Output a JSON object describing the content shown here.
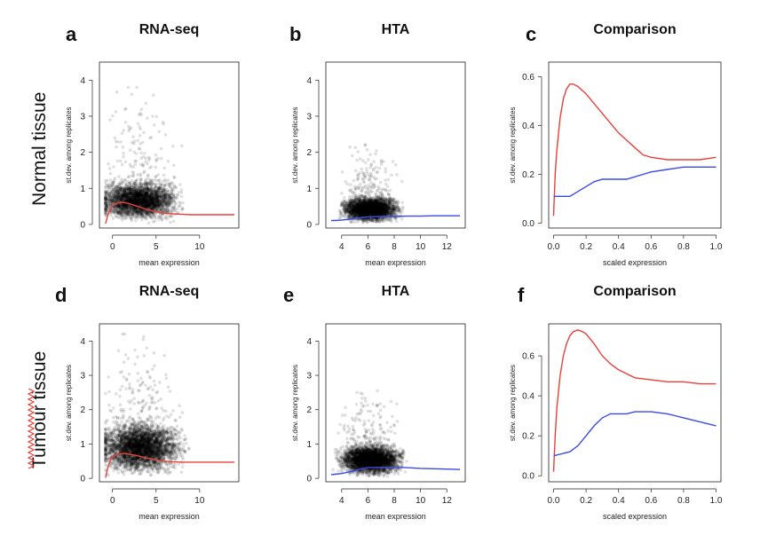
{
  "figure": {
    "row_labels": [
      "Normal tissue",
      "Tumour tissue"
    ],
    "spellcheck_color": "#e8413a"
  },
  "chart_data": [
    {
      "panel": "a",
      "title": "RNA-seq",
      "type": "scatter",
      "xlabel": "mean expression",
      "ylabel": "st.dev. among replicates",
      "xlim": [
        -1.5,
        14.5
      ],
      "ylim": [
        -0.1,
        4.5
      ],
      "xticks": [
        0,
        5,
        10
      ],
      "yticks": [
        0,
        1,
        2,
        3,
        4
      ],
      "point_color": "#000000",
      "point_opacity": 0.12,
      "density": {
        "x_center": 3.0,
        "x_spread": 2.6,
        "x_min": -0.8,
        "x_max": 11.5,
        "y_scale": 0.55,
        "n": 3200,
        "max_y": 3.8
      },
      "series": [
        {
          "color": "#e8413a",
          "x": [
            -0.8,
            -0.6,
            -0.4,
            -0.2,
            0,
            0.3,
            0.6,
            1,
            1.5,
            2,
            3,
            4,
            5,
            6,
            7,
            8,
            9,
            10,
            11,
            12,
            13,
            14
          ],
          "y": [
            0.02,
            0.2,
            0.36,
            0.46,
            0.52,
            0.57,
            0.6,
            0.61,
            0.6,
            0.57,
            0.49,
            0.41,
            0.35,
            0.31,
            0.29,
            0.28,
            0.27,
            0.27,
            0.27,
            0.27,
            0.27,
            0.27
          ]
        }
      ]
    },
    {
      "panel": "b",
      "title": "HTA",
      "type": "scatter",
      "xlabel": "mean expression",
      "ylabel": "st.dev. among replicates",
      "xlim": [
        2.8,
        13.4
      ],
      "ylim": [
        -0.1,
        4.5
      ],
      "xticks": [
        4,
        6,
        8,
        10,
        12
      ],
      "yticks": [
        0,
        1,
        2,
        3,
        4
      ],
      "point_color": "#000000",
      "point_opacity": 0.12,
      "density": {
        "x_center": 6.2,
        "x_spread": 1.3,
        "x_min": 3.2,
        "x_max": 10.2,
        "y_scale": 0.35,
        "n": 3200,
        "max_y": 2.4
      },
      "series": [
        {
          "color": "#3a4ae8",
          "x": [
            3.2,
            3.5,
            4,
            4.5,
            5,
            6,
            7,
            8,
            9,
            10,
            11,
            12,
            13
          ],
          "y": [
            0.11,
            0.11,
            0.12,
            0.14,
            0.17,
            0.21,
            0.22,
            0.22,
            0.23,
            0.23,
            0.24,
            0.24,
            0.24
          ]
        }
      ]
    },
    {
      "panel": "c",
      "title": "Comparison",
      "type": "line",
      "xlabel": "scaled expression",
      "ylabel": "st.dev. among replicates",
      "xlim": [
        -0.03,
        1.03
      ],
      "ylim": [
        -0.02,
        0.66
      ],
      "xticks": [
        0.0,
        0.2,
        0.4,
        0.6,
        0.8,
        1.0
      ],
      "yticks": [
        0.0,
        0.2,
        0.4,
        0.6
      ],
      "series": [
        {
          "color": "#e8413a",
          "x": [
            0.0,
            0.01,
            0.02,
            0.04,
            0.06,
            0.08,
            0.1,
            0.12,
            0.15,
            0.2,
            0.25,
            0.3,
            0.35,
            0.4,
            0.45,
            0.5,
            0.55,
            0.6,
            0.7,
            0.8,
            0.9,
            1.0
          ],
          "y": [
            0.03,
            0.2,
            0.3,
            0.43,
            0.51,
            0.55,
            0.57,
            0.57,
            0.56,
            0.53,
            0.49,
            0.45,
            0.41,
            0.37,
            0.34,
            0.31,
            0.28,
            0.27,
            0.26,
            0.26,
            0.26,
            0.27
          ]
        },
        {
          "color": "#3a4ae8",
          "x": [
            0.0,
            0.05,
            0.1,
            0.15,
            0.2,
            0.25,
            0.3,
            0.35,
            0.4,
            0.45,
            0.5,
            0.55,
            0.6,
            0.7,
            0.8,
            0.9,
            1.0
          ],
          "y": [
            0.11,
            0.11,
            0.11,
            0.13,
            0.15,
            0.17,
            0.18,
            0.18,
            0.18,
            0.18,
            0.19,
            0.2,
            0.21,
            0.22,
            0.23,
            0.23,
            0.23
          ]
        }
      ]
    },
    {
      "panel": "d",
      "title": "RNA-seq",
      "type": "scatter",
      "xlabel": "mean expression",
      "ylabel": "st.dev. among replicates",
      "xlim": [
        -1.5,
        14.5
      ],
      "ylim": [
        -0.1,
        4.5
      ],
      "xticks": [
        0,
        5,
        10
      ],
      "yticks": [
        0,
        1,
        2,
        3,
        4
      ],
      "point_color": "#000000",
      "point_opacity": 0.12,
      "density": {
        "x_center": 3.2,
        "x_spread": 2.8,
        "x_min": -0.8,
        "x_max": 12.0,
        "y_scale": 0.75,
        "n": 3800,
        "max_y": 4.2
      },
      "series": [
        {
          "color": "#e8413a",
          "x": [
            -0.8,
            -0.6,
            -0.4,
            -0.2,
            0,
            0.3,
            0.6,
            1,
            1.5,
            2,
            3,
            4,
            5,
            6,
            7,
            8,
            9,
            10,
            11,
            12,
            13,
            14
          ],
          "y": [
            0.02,
            0.25,
            0.42,
            0.55,
            0.62,
            0.68,
            0.71,
            0.72,
            0.72,
            0.7,
            0.65,
            0.59,
            0.54,
            0.5,
            0.48,
            0.47,
            0.47,
            0.47,
            0.47,
            0.47,
            0.47,
            0.47
          ]
        }
      ]
    },
    {
      "panel": "e",
      "title": "HTA",
      "type": "scatter",
      "xlabel": "mean expression",
      "ylabel": "st.dev. among replicates",
      "xlim": [
        2.8,
        13.4
      ],
      "ylim": [
        -0.1,
        4.5
      ],
      "xticks": [
        4,
        6,
        8,
        10,
        12
      ],
      "yticks": [
        0,
        1,
        2,
        3,
        4
      ],
      "point_color": "#000000",
      "point_opacity": 0.12,
      "density": {
        "x_center": 6.2,
        "x_spread": 1.4,
        "x_min": 3.2,
        "x_max": 10.5,
        "y_scale": 0.45,
        "n": 3600,
        "max_y": 2.7
      },
      "series": [
        {
          "color": "#3a4ae8",
          "x": [
            3.2,
            3.5,
            4,
            4.5,
            5,
            5.5,
            6,
            7,
            8,
            9,
            10,
            11,
            12,
            13
          ],
          "y": [
            0.11,
            0.12,
            0.14,
            0.18,
            0.23,
            0.28,
            0.31,
            0.32,
            0.32,
            0.31,
            0.29,
            0.28,
            0.27,
            0.26
          ]
        }
      ]
    },
    {
      "panel": "f",
      "title": "Comparison",
      "type": "line",
      "xlabel": "scaled expression",
      "ylabel": "st.dev. among replicates",
      "xlim": [
        -0.03,
        1.03
      ],
      "ylim": [
        -0.03,
        0.76
      ],
      "xticks": [
        0.0,
        0.2,
        0.4,
        0.6,
        0.8,
        1.0
      ],
      "yticks": [
        0.0,
        0.2,
        0.4,
        0.6
      ],
      "series": [
        {
          "color": "#e8413a",
          "x": [
            0.0,
            0.01,
            0.02,
            0.04,
            0.06,
            0.08,
            0.1,
            0.12,
            0.15,
            0.18,
            0.2,
            0.25,
            0.3,
            0.35,
            0.4,
            0.45,
            0.5,
            0.6,
            0.7,
            0.8,
            0.9,
            1.0
          ],
          "y": [
            0.02,
            0.2,
            0.34,
            0.5,
            0.6,
            0.66,
            0.7,
            0.72,
            0.73,
            0.72,
            0.71,
            0.66,
            0.6,
            0.56,
            0.53,
            0.51,
            0.49,
            0.48,
            0.47,
            0.47,
            0.46,
            0.46
          ]
        },
        {
          "color": "#3a4ae8",
          "x": [
            0.0,
            0.05,
            0.1,
            0.15,
            0.2,
            0.25,
            0.3,
            0.35,
            0.4,
            0.45,
            0.5,
            0.55,
            0.6,
            0.7,
            0.8,
            0.9,
            1.0
          ],
          "y": [
            0.1,
            0.11,
            0.12,
            0.15,
            0.2,
            0.25,
            0.29,
            0.31,
            0.31,
            0.31,
            0.32,
            0.32,
            0.32,
            0.31,
            0.29,
            0.27,
            0.25
          ]
        }
      ]
    }
  ]
}
